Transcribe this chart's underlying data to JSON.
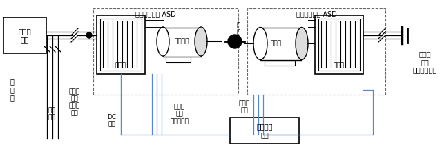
{
  "bg_color": "#ffffff",
  "line_color": "#000000",
  "blue_line_color": "#5588cc",
  "labels": {
    "programmable_power": "可编程\n电源",
    "circuit_breaker": "断\n路\n器",
    "test_power": "试验\n电源",
    "vfd_input": "变频器\n输入\n电压、\n电流",
    "dc_voltage": "DC\n电压",
    "vfd_output": "变频器\n输出\n电压、电流",
    "speed_torque": "转速与\n转矩",
    "data_acq": "数据采集\n系统",
    "coupling": "联\n轴\n器",
    "tested_motor_asd": "被测电机及其 ASD",
    "simulated_load_asd": "模拟负载及其 ASD",
    "driver1": "驱动器",
    "motor_load": "电机负载",
    "dynamometer": "测功机",
    "driver2": "驱动器",
    "lab_power": "试验室\n电源\n（能量回馈）"
  },
  "figsize": [
    6.4,
    2.17
  ],
  "dpi": 100
}
